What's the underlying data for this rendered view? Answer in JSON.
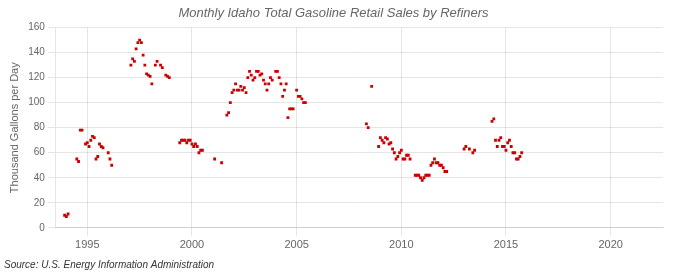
{
  "chart_data": {
    "type": "scatter",
    "title": "Monthly Idaho Total Gasoline Retail Sales by Refiners",
    "ylabel": "Thousand Gallons per Day",
    "source": "Source: U.S. Energy Information Administration",
    "color": "#cc0000",
    "marker": "square",
    "grid": true,
    "xlim": [
      1993.5,
      2022.5
    ],
    "ylim": [
      0,
      160
    ],
    "xticks": [
      1995,
      2000,
      2005,
      2010,
      2015,
      2020
    ],
    "yticks": [
      0,
      20,
      40,
      60,
      80,
      100,
      120,
      140,
      160
    ],
    "x": [
      1993.917,
      1994.0,
      1994.083,
      1994.5,
      1994.583,
      1994.667,
      1994.75,
      1994.917,
      1995.0,
      1995.083,
      1995.167,
      1995.25,
      1995.333,
      1995.417,
      1995.5,
      1995.583,
      1995.667,
      1995.75,
      1996.0,
      1996.083,
      1996.167,
      1997.083,
      1997.167,
      1997.25,
      1997.333,
      1997.417,
      1997.5,
      1997.583,
      1997.667,
      1997.75,
      1997.833,
      1997.917,
      1998.0,
      1998.083,
      1998.25,
      1998.333,
      1998.5,
      1998.583,
      1998.75,
      1998.833,
      1998.917,
      1999.417,
      1999.5,
      1999.583,
      1999.667,
      1999.75,
      1999.833,
      1999.917,
      2000.0,
      2000.083,
      2000.167,
      2000.25,
      2000.333,
      2000.417,
      2000.5,
      2001.083,
      2001.417,
      2001.667,
      2001.75,
      2001.833,
      2001.917,
      2002.0,
      2002.083,
      2002.167,
      2002.25,
      2002.333,
      2002.417,
      2002.5,
      2002.583,
      2002.667,
      2002.75,
      2002.833,
      2002.917,
      2003.0,
      2003.083,
      2003.167,
      2003.25,
      2003.333,
      2003.417,
      2003.5,
      2003.583,
      2003.667,
      2003.75,
      2003.833,
      2004.0,
      2004.083,
      2004.167,
      2004.25,
      2004.333,
      2004.417,
      2004.5,
      2004.583,
      2004.667,
      2004.75,
      2004.833,
      2005.0,
      2005.083,
      2005.167,
      2005.25,
      2005.333,
      2005.417,
      2008.333,
      2008.417,
      2008.583,
      2008.917,
      2009.0,
      2009.083,
      2009.167,
      2009.25,
      2009.333,
      2009.417,
      2009.5,
      2009.583,
      2009.667,
      2009.75,
      2009.833,
      2009.917,
      2010.0,
      2010.083,
      2010.167,
      2010.25,
      2010.333,
      2010.417,
      2010.667,
      2010.75,
      2010.833,
      2010.917,
      2011.0,
      2011.083,
      2011.167,
      2011.25,
      2011.333,
      2011.417,
      2011.5,
      2011.583,
      2011.667,
      2011.75,
      2011.833,
      2011.917,
      2012.0,
      2012.083,
      2012.167,
      2013.0,
      2013.083,
      2013.25,
      2013.417,
      2013.5,
      2014.333,
      2014.417,
      2014.5,
      2014.583,
      2014.667,
      2014.75,
      2014.833,
      2014.917,
      2015.0,
      2015.083,
      2015.167,
      2015.25,
      2015.333,
      2015.417,
      2015.5,
      2015.583,
      2015.667,
      2015.75
    ],
    "values": [
      10,
      9,
      11,
      55,
      53,
      78,
      78,
      67,
      68,
      65,
      70,
      73,
      72,
      55,
      57,
      67,
      65,
      64,
      60,
      55,
      50,
      130,
      135,
      133,
      143,
      148,
      150,
      148,
      138,
      130,
      123,
      122,
      121,
      115,
      130,
      133,
      130,
      128,
      122,
      121,
      120,
      68,
      70,
      70,
      70,
      68,
      70,
      70,
      67,
      65,
      67,
      65,
      60,
      62,
      62,
      55,
      52,
      90,
      92,
      100,
      108,
      110,
      115,
      110,
      110,
      113,
      110,
      112,
      108,
      120,
      125,
      122,
      118,
      120,
      125,
      125,
      122,
      123,
      118,
      115,
      110,
      115,
      120,
      118,
      125,
      125,
      120,
      115,
      105,
      110,
      115,
      88,
      95,
      95,
      95,
      110,
      105,
      105,
      103,
      100,
      100,
      83,
      80,
      113,
      65,
      72,
      70,
      68,
      72,
      71,
      67,
      68,
      63,
      60,
      55,
      57,
      60,
      62,
      55,
      55,
      58,
      58,
      55,
      42,
      42,
      42,
      40,
      38,
      40,
      42,
      42,
      42,
      50,
      52,
      55,
      52,
      52,
      50,
      50,
      48,
      45,
      45,
      63,
      65,
      63,
      60,
      62,
      85,
      87,
      70,
      65,
      70,
      72,
      65,
      65,
      62,
      68,
      70,
      65,
      60,
      60,
      55,
      55,
      57,
      60
    ]
  }
}
